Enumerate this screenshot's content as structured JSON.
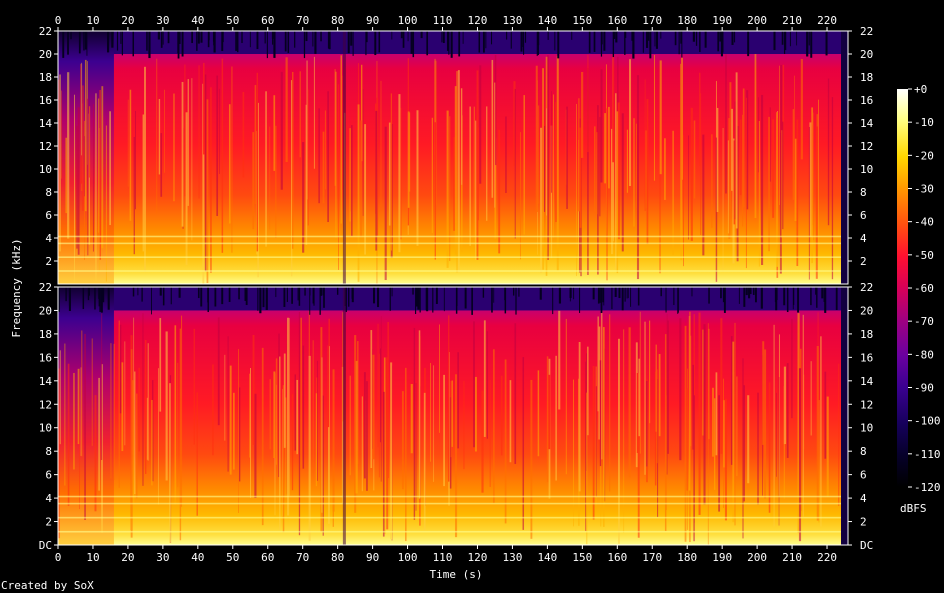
{
  "chart_data": {
    "type": "heatmap",
    "title": "",
    "xlabel": "Time (s)",
    "ylabel": "Frequency (kHz)",
    "xlim": [
      0,
      226
    ],
    "ylim": [
      0,
      22
    ],
    "x_ticks": [
      "0",
      "10",
      "20",
      "30",
      "40",
      "50",
      "60",
      "70",
      "80",
      "90",
      "100",
      "110",
      "120",
      "130",
      "140",
      "150",
      "160",
      "170",
      "180",
      "190",
      "200",
      "210",
      "220"
    ],
    "y_ticks_top": [
      "2",
      "4",
      "6",
      "8",
      "10",
      "12",
      "14",
      "16",
      "18",
      "20",
      "22"
    ],
    "y_ticks_bottom": [
      "DC",
      "2",
      "4",
      "6",
      "8",
      "10",
      "12",
      "14",
      "16",
      "18",
      "20",
      "22"
    ],
    "channels": 2,
    "colorbar": {
      "label": "dBFS",
      "range": [
        -120,
        0
      ],
      "ticks": [
        "+0",
        "-10",
        "-20",
        "-30",
        "-40",
        "-50",
        "-60",
        "-70",
        "-80",
        "-90",
        "-100",
        "-110",
        "-120"
      ],
      "colors": [
        "#ffffff",
        "#ffff80",
        "#ffd800",
        "#ff9800",
        "#ff5010",
        "#ff1030",
        "#d80058",
        "#a00080",
        "#6a00a0",
        "#3a0090",
        "#16005c",
        "#06002a",
        "#000000"
      ]
    },
    "lowpass_cutoff_khz": 20,
    "quiet_intro_end_s": 16,
    "end_s": 224,
    "footer": "Created by SoX"
  }
}
